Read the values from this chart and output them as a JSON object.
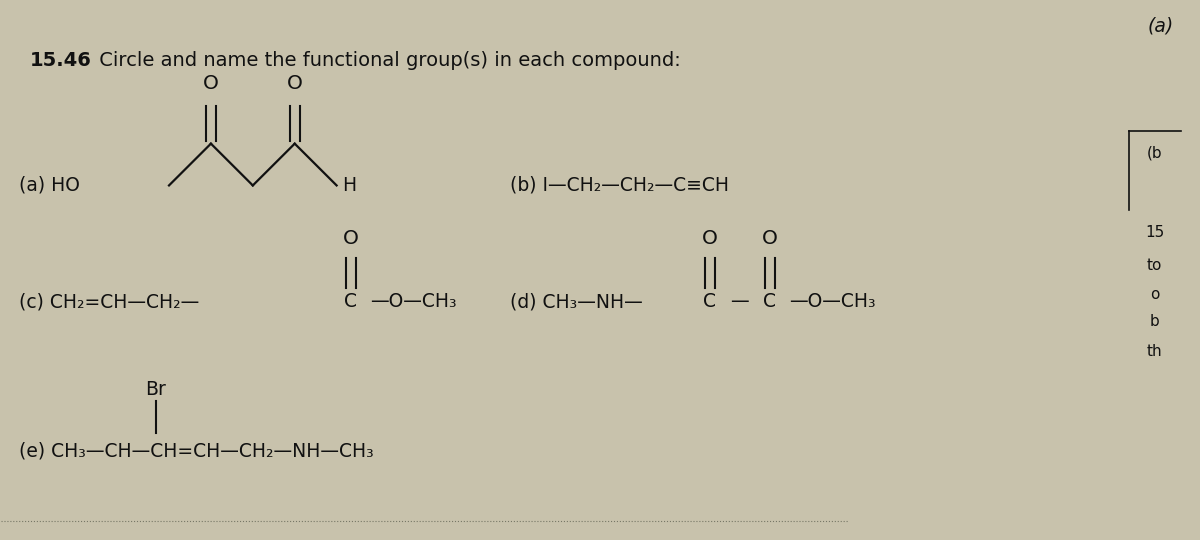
{
  "bg_color": "#c8c2ac",
  "text_color": "#111111",
  "corner_label": "(a)",
  "fig_width": 12.0,
  "fig_height": 5.4,
  "title_bold": "15.46",
  "title_rest": " Circle and name the functional group(s) in each compound:",
  "right_labels": [
    "(b",
    "15",
    "to",
    "o",
    "b",
    "th"
  ]
}
